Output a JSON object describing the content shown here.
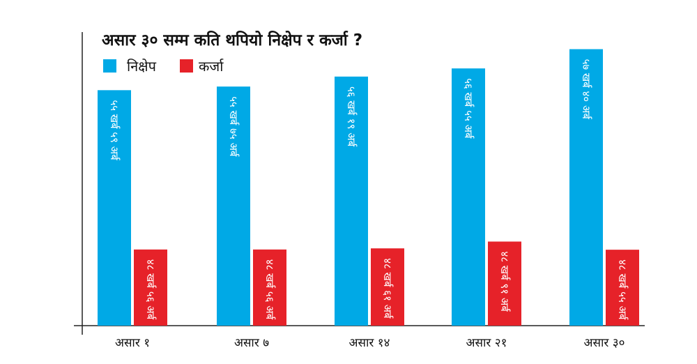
{
  "chart_data": {
    "type": "bar",
    "title": "असार ३० सम्म कति थपियो निक्षेप र कर्जा ?",
    "categories": [
      "असार १",
      "असार ७",
      "असार १४",
      "असार २१",
      "असार ३०"
    ],
    "ylim": [
      0,
      60
    ],
    "series": [
      {
        "name": "निक्षेप",
        "color": "#00a9e6",
        "values": [
          55.59,
          55.75,
          56.19,
          56.55,
          57.4
        ],
        "labels": [
          "५५ खर्ब ५९ अर्ब",
          "५५ खर्ब ७५ अर्ब",
          "५६ खर्ब १९ अर्ब",
          "५६ खर्ब ५५ अर्ब",
          "५७ खर्ब ४० अर्ब"
        ]
      },
      {
        "name": "कर्जा",
        "color": "#e62229",
        "values": [
          48.56,
          48.56,
          48.61,
          48.91,
          48.55
        ],
        "labels": [
          "४८ खर्ब ५६ अर्ब",
          "४८ खर्ब ५६ अर्ब",
          "४८ खर्ब ६१ अर्ब",
          "४८ खर्ब ९१ अर्ब",
          "४८ खर्ब ५५ अर्ब"
        ]
      }
    ],
    "legend": "top-left",
    "grid": false
  }
}
